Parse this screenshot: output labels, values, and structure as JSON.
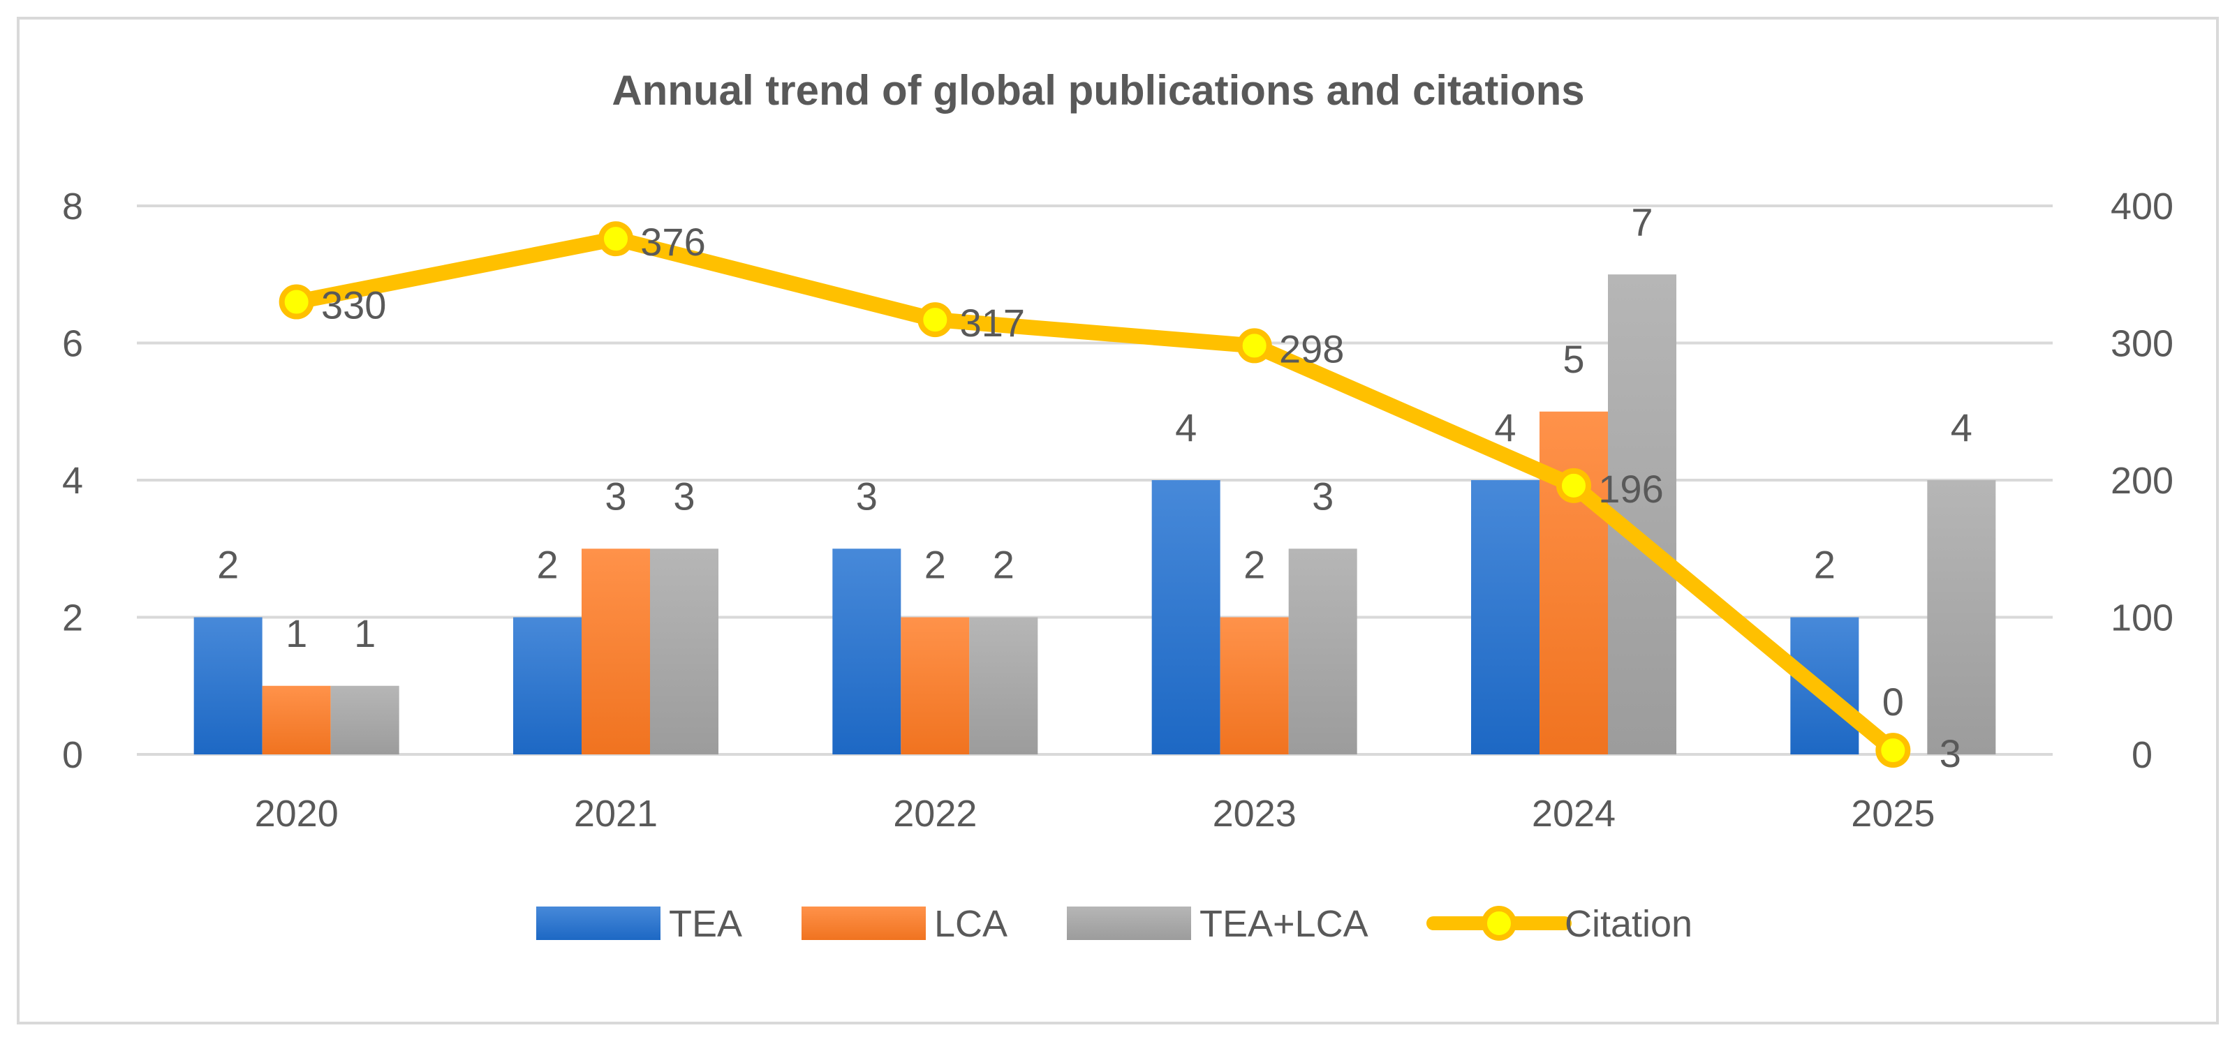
{
  "chart_data": {
    "type": "bar",
    "title": "Annual trend of global publications and citations",
    "categories": [
      "2020",
      "2021",
      "2022",
      "2023",
      "2024",
      "2025"
    ],
    "series": [
      {
        "name": "TEA",
        "type": "bar",
        "axis": "left",
        "values": [
          2,
          2,
          3,
          4,
          4,
          2
        ],
        "color": "#1f6fd1"
      },
      {
        "name": "LCA",
        "type": "bar",
        "axis": "left",
        "values": [
          1,
          3,
          2,
          2,
          5,
          0
        ],
        "color": "#ff7a22"
      },
      {
        "name": "TEA+LCA",
        "type": "bar",
        "axis": "left",
        "values": [
          1,
          3,
          2,
          3,
          7,
          4
        ],
        "color": "#a6a6a6"
      },
      {
        "name": "Citation",
        "type": "line",
        "axis": "right",
        "values": [
          330,
          376,
          317,
          298,
          196,
          3
        ],
        "color": "#ffc000",
        "marker_color": "#ffff00"
      }
    ],
    "y_left": {
      "range": [
        0,
        8
      ],
      "ticks": [
        "0",
        "2",
        "4",
        "6",
        "8"
      ]
    },
    "y_right": {
      "range": [
        0,
        400
      ],
      "ticks": [
        "0",
        "100",
        "200",
        "300",
        "400"
      ]
    },
    "grid": true,
    "legend_position": "bottom"
  }
}
